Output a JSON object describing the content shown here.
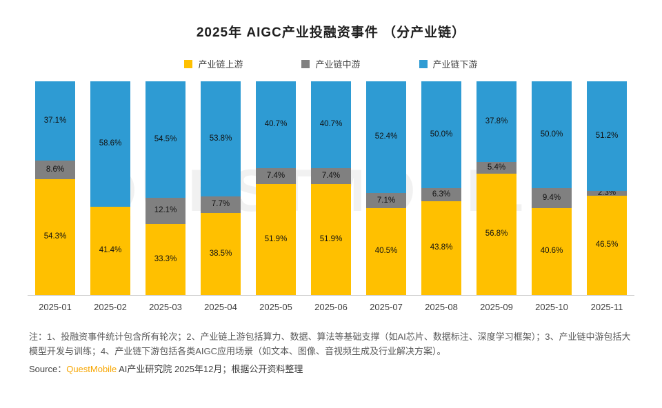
{
  "title": "2025年 AIGC产业投融资事件 （分产业链）",
  "legend": [
    {
      "label": "产业链上游",
      "color": "#FFC000"
    },
    {
      "label": "产业链中游",
      "color": "#808080"
    },
    {
      "label": "产业链下游",
      "color": "#2E9BD3"
    }
  ],
  "chart_data": {
    "type": "bar",
    "stacked": true,
    "percent": true,
    "ylim": [
      0,
      100
    ],
    "categories": [
      "2025-01",
      "2025-02",
      "2025-03",
      "2025-04",
      "2025-05",
      "2025-06",
      "2025-07",
      "2025-08",
      "2025-09",
      "2025-10",
      "2025-11"
    ],
    "series": [
      {
        "name": "产业链上游",
        "key": "upstream",
        "color": "#FFC000",
        "values": [
          54.3,
          41.4,
          33.3,
          38.5,
          51.9,
          51.9,
          40.5,
          43.8,
          56.8,
          40.6,
          46.5
        ]
      },
      {
        "name": "产业链中游",
        "key": "midstream",
        "color": "#808080",
        "values": [
          8.6,
          0,
          12.1,
          7.7,
          7.4,
          7.4,
          7.1,
          6.3,
          5.4,
          9.4,
          2.3
        ]
      },
      {
        "name": "产业链下游",
        "key": "downstream",
        "color": "#2E9BD3",
        "values": [
          37.1,
          58.6,
          54.5,
          53.8,
          40.7,
          40.7,
          52.4,
          50.0,
          37.8,
          50.0,
          51.2
        ]
      }
    ],
    "legend_position": "top",
    "grid": false
  },
  "watermark": "QUESTMOBILE",
  "footnote": "注：1、投融资事件统计包含所有轮次；2、产业链上游包括算力、数据、算法等基础支撑（如AI芯片、数据标注、深度学习框架）；3、产业链中游包括大模型开发与训练；4、产业链下游包括各类AIGC应用场景（如文本、图像、音视频生成及行业解决方案）。",
  "source": {
    "prefix": "Source：",
    "brand": "QuestMobile",
    "rest": " AI产业研究院 2025年12月；根据公开资料整理"
  }
}
